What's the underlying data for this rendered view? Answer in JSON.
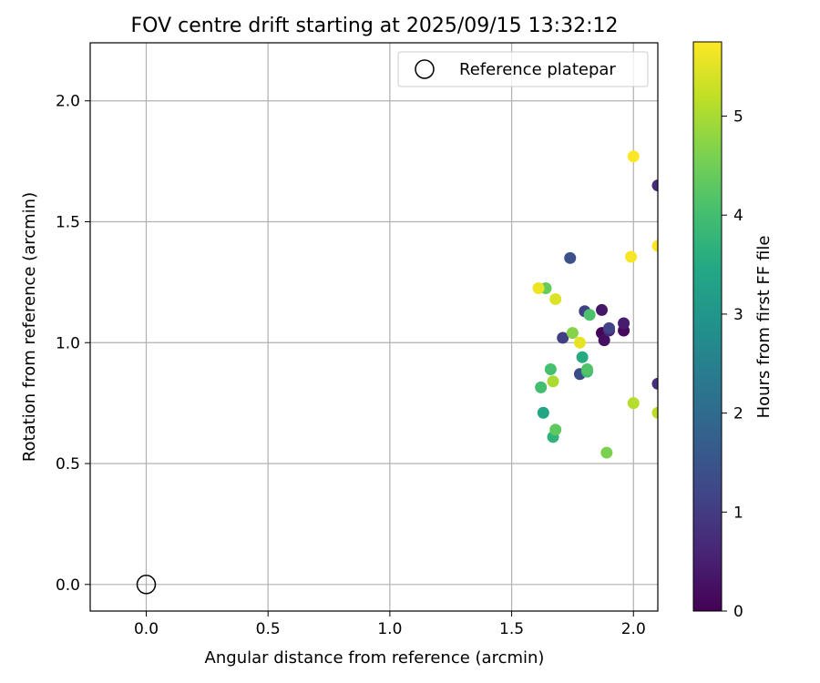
{
  "chart_data": {
    "type": "scatter",
    "title": "FOV centre drift starting at 2025/09/15 13:32:12",
    "xlabel": "Angular distance from reference (arcmin)",
    "ylabel": "Rotation from reference (arcmin)",
    "xlim": [
      -0.23,
      2.1
    ],
    "ylim": [
      -0.11,
      2.24
    ],
    "xticks": [
      0.0,
      0.5,
      1.0,
      1.5,
      2.0
    ],
    "xtick_labels": [
      "0.0",
      "0.5",
      "1.0",
      "1.5",
      "2.0"
    ],
    "yticks": [
      0.0,
      0.5,
      1.0,
      1.5,
      2.0
    ],
    "ytick_labels": [
      "0.0",
      "0.5",
      "1.0",
      "1.5",
      "2.0"
    ],
    "grid": true,
    "legend": {
      "placement": "top-right",
      "entries": [
        {
          "label": "Reference platepar",
          "marker": "open-circle"
        }
      ]
    },
    "colorbar": {
      "label": "Hours from first FF file",
      "colormap": "viridis",
      "range": [
        0,
        5.75
      ],
      "ticks": [
        0,
        1,
        2,
        3,
        4,
        5
      ],
      "tick_labels": [
        "0",
        "1",
        "2",
        "3",
        "4",
        "5"
      ]
    },
    "reference_point": {
      "x": 0.0,
      "y": 0.0
    },
    "points": [
      {
        "x": 1.87,
        "y": 1.04,
        "hours": 0.05
      },
      {
        "x": 1.96,
        "y": 1.05,
        "hours": 0.15
      },
      {
        "x": 1.88,
        "y": 1.01,
        "hours": 0.25
      },
      {
        "x": 1.87,
        "y": 1.135,
        "hours": 0.35
      },
      {
        "x": 1.96,
        "y": 1.08,
        "hours": 0.45
      },
      {
        "x": 1.9,
        "y": 1.05,
        "hours": 0.6
      },
      {
        "x": 2.1,
        "y": 1.65,
        "hours": 0.7
      },
      {
        "x": 2.1,
        "y": 0.83,
        "hours": 0.8
      },
      {
        "x": 1.71,
        "y": 1.02,
        "hours": 1.05
      },
      {
        "x": 1.8,
        "y": 1.13,
        "hours": 1.1
      },
      {
        "x": 1.9,
        "y": 1.06,
        "hours": 1.15
      },
      {
        "x": 1.78,
        "y": 0.87,
        "hours": 1.3
      },
      {
        "x": 1.74,
        "y": 1.35,
        "hours": 1.4
      },
      {
        "x": 1.63,
        "y": 0.71,
        "hours": 3.4
      },
      {
        "x": 1.79,
        "y": 0.94,
        "hours": 3.5
      },
      {
        "x": 1.67,
        "y": 0.61,
        "hours": 3.7
      },
      {
        "x": 1.81,
        "y": 0.88,
        "hours": 3.9
      },
      {
        "x": 1.62,
        "y": 0.815,
        "hours": 4.0
      },
      {
        "x": 1.66,
        "y": 0.89,
        "hours": 4.05
      },
      {
        "x": 1.82,
        "y": 1.115,
        "hours": 4.1
      },
      {
        "x": 1.81,
        "y": 0.89,
        "hours": 4.15
      },
      {
        "x": 1.68,
        "y": 0.64,
        "hours": 4.3
      },
      {
        "x": 1.64,
        "y": 1.225,
        "hours": 4.4
      },
      {
        "x": 1.89,
        "y": 0.545,
        "hours": 4.6
      },
      {
        "x": 1.75,
        "y": 1.04,
        "hours": 4.7
      },
      {
        "x": 1.67,
        "y": 0.84,
        "hours": 5.0
      },
      {
        "x": 2.0,
        "y": 0.75,
        "hours": 5.1
      },
      {
        "x": 2.1,
        "y": 0.71,
        "hours": 5.15
      },
      {
        "x": 1.68,
        "y": 1.18,
        "hours": 5.45
      },
      {
        "x": 1.78,
        "y": 1.0,
        "hours": 5.55
      },
      {
        "x": 1.61,
        "y": 1.225,
        "hours": 5.6
      },
      {
        "x": 1.99,
        "y": 1.355,
        "hours": 5.7
      },
      {
        "x": 2.0,
        "y": 1.77,
        "hours": 5.75
      },
      {
        "x": 2.1,
        "y": 1.4,
        "hours": 5.75
      }
    ]
  }
}
